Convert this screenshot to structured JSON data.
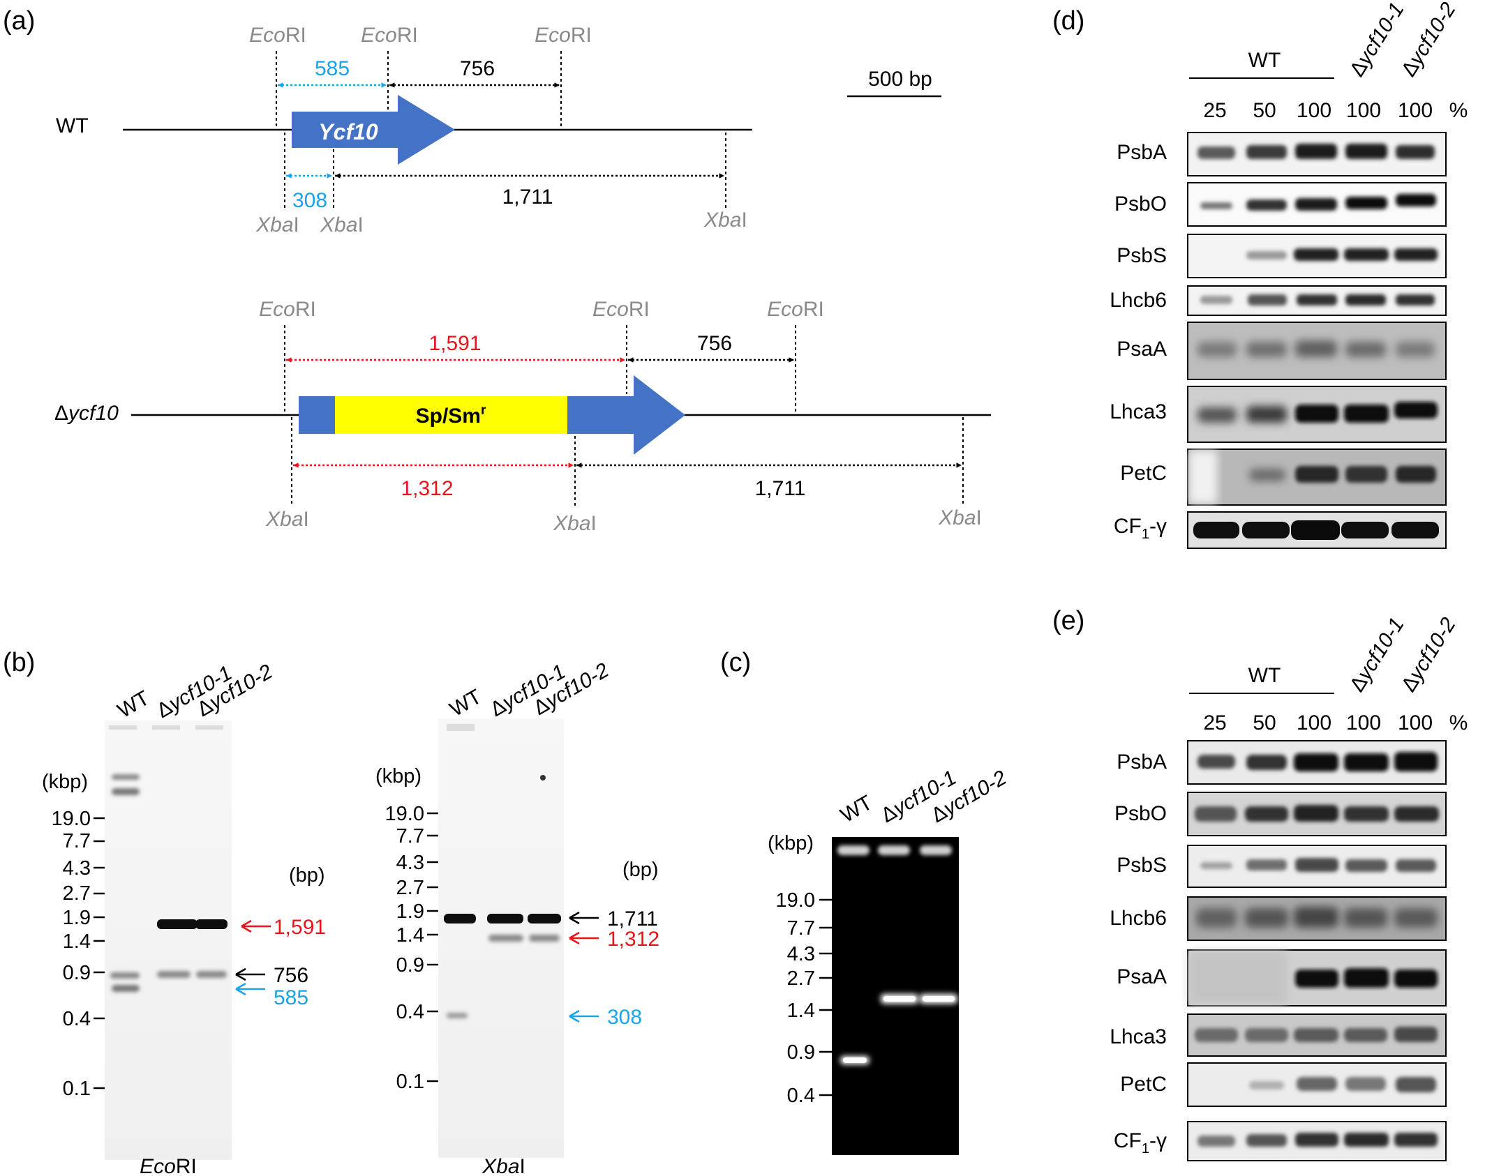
{
  "panels": {
    "a": {
      "label": "(a)",
      "scale_bar": "500 bp",
      "wt": {
        "strain": "WT",
        "gene": "Ycf10",
        "ecori": [
          "EcoRI",
          "EcoRI",
          "EcoRI"
        ],
        "xbai": [
          "XbaI",
          "XbaI",
          "XbaI"
        ],
        "ecori_fragments": [
          "585",
          "756"
        ],
        "xbai_fragments": [
          "308",
          "1,711"
        ]
      },
      "mutant": {
        "strain_prefix": "Δ",
        "strain_name": "ycf10",
        "cassette": "Sp/Sm",
        "cassette_sup": "r",
        "ecori": [
          "EcoRI",
          "EcoRI",
          "EcoRI"
        ],
        "xbai": [
          "XbaI",
          "XbaI",
          "XbaI"
        ],
        "ecori_fragments": [
          "1,591",
          "756"
        ],
        "xbai_fragments": [
          "1,312",
          "1,711"
        ]
      }
    },
    "b": {
      "label": "(b)",
      "lanes": [
        "WT",
        "Δycf10-1",
        "Δycf10-2"
      ],
      "kbp_label": "(kbp)",
      "bp_label": "(bp)",
      "markers": [
        "19.0",
        "7.7",
        "4.3",
        "2.7",
        "1.9",
        "1.4",
        "0.9",
        "0.4",
        "0.1"
      ],
      "ecori_blot": {
        "enzyme_italic": "Eco",
        "enzyme_rest": "RI",
        "arrows": [
          "1,591",
          "756",
          "585"
        ]
      },
      "xbai_blot": {
        "enzyme_italic": "Xba",
        "enzyme_rest": "I",
        "arrows": [
          "1,711",
          "1,312",
          "308"
        ]
      }
    },
    "c": {
      "label": "(c)",
      "lanes": [
        "WT",
        "Δycf10-1",
        "Δycf10-2"
      ],
      "kbp_label": "(kbp)",
      "markers": [
        "19.0",
        "7.7",
        "4.3",
        "2.7",
        "1.4",
        "0.9",
        "0.4"
      ]
    },
    "d": {
      "label": "(d)",
      "wt_label": "WT",
      "mutant_lanes": [
        "Δycf10-1",
        "Δycf10-2"
      ],
      "loadings": [
        "25",
        "50",
        "100",
        "100",
        "100"
      ],
      "percent": "%",
      "proteins": [
        "PsbA",
        "PsbO",
        "PsbS",
        "Lhcb6",
        "PsaA",
        "Lhca3",
        "PetC",
        "CF1-γ"
      ]
    },
    "e": {
      "label": "(e)",
      "wt_label": "WT",
      "mutant_lanes": [
        "Δycf10-1",
        "Δycf10-2"
      ],
      "loadings": [
        "25",
        "50",
        "100",
        "100",
        "100"
      ],
      "percent": "%",
      "proteins": [
        "PsbA",
        "PsbO",
        "PsbS",
        "Lhcb6",
        "PsaA",
        "Lhca3",
        "PetC",
        "CF1-γ"
      ]
    }
  },
  "colors": {
    "gene_blue": "#4472c4",
    "cassette_yellow": "#ffff00",
    "fragment_blue": "#1aa3e8",
    "fragment_red": "#e8141b",
    "site_gray": "#8a8a8a"
  }
}
